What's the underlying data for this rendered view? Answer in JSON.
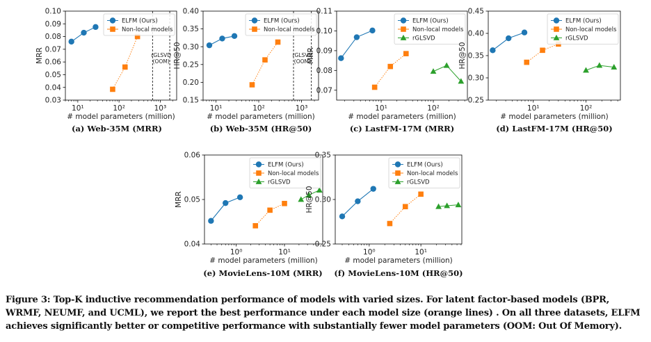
{
  "colors": {
    "ours": "#1f77b4",
    "nonlocal": "#ff7f0e",
    "rglsvd": "#2ca02c"
  },
  "legend": {
    "ours": "ELFM (Ours)",
    "nonlocal": "Non-local models",
    "rglsvd": "rGLSVD"
  },
  "figure_caption": "Figure 3: Top-K inductive recommendation performance of models with varied sizes. For latent factor-based models (BPR, WRMF, NEUMF, and UCML), we report the best performance under each model size (orange lines) . On all three datasets, ELFM achieves significantly better or competitive performance with substantially fewer model parameters (OOM: Out Of Memory).",
  "chart_data": [
    {
      "type": "line",
      "caption": "(a) Web-35M (MRR)",
      "xlabel": "# model parameters (million)",
      "ylabel": "MRR",
      "xscale": "log",
      "xlim": [
        5,
        2500
      ],
      "xticks": [
        {
          "v": 10,
          "label": "10¹"
        },
        {
          "v": 100,
          "label": "10²"
        },
        {
          "v": 1000,
          "label": "10³"
        }
      ],
      "ylim": [
        0.03,
        0.1
      ],
      "yticks": [
        0.03,
        0.04,
        0.05,
        0.06,
        0.07,
        0.08,
        0.09,
        0.1
      ],
      "ytick_labels": [
        "0.03",
        "0.04",
        "0.05",
        "0.06",
        "0.07",
        "0.08",
        "0.09",
        "0.10"
      ],
      "series": [
        {
          "key": "ours",
          "name": "ELFM (Ours)",
          "marker": "circle",
          "x": [
            7,
            14,
            27
          ],
          "y": [
            0.076,
            0.083,
            0.0875
          ]
        },
        {
          "key": "nonlocal",
          "name": "Non-local models",
          "marker": "square",
          "x": [
            70,
            140,
            280
          ],
          "y": [
            0.0385,
            0.056,
            0.08
          ]
        }
      ],
      "oom": {
        "label": "rGLSVD (OOM)",
        "lines": [
          "rGLSVD",
          "(OOM)"
        ],
        "x": [
          650,
          1700
        ]
      }
    },
    {
      "type": "line",
      "caption": "(b) Web-35M (HR@50)",
      "xlabel": "# model parameters (million)",
      "ylabel": "HR@50",
      "xscale": "log",
      "xlim": [
        5,
        2500
      ],
      "xticks": [
        {
          "v": 10,
          "label": "10¹"
        },
        {
          "v": 100,
          "label": "10²"
        },
        {
          "v": 1000,
          "label": "10³"
        }
      ],
      "ylim": [
        0.15,
        0.4
      ],
      "yticks": [
        0.15,
        0.2,
        0.25,
        0.3,
        0.35,
        0.4
      ],
      "ytick_labels": [
        "0.15",
        "0.20",
        "0.25",
        "0.30",
        "0.35",
        "0.40"
      ],
      "series": [
        {
          "key": "ours",
          "name": "ELFM (Ours)",
          "marker": "circle",
          "x": [
            7,
            14,
            27
          ],
          "y": [
            0.304,
            0.323,
            0.33
          ]
        },
        {
          "key": "nonlocal",
          "name": "Non-local models",
          "marker": "square",
          "x": [
            70,
            140,
            280
          ],
          "y": [
            0.193,
            0.263,
            0.313
          ]
        }
      ],
      "oom": {
        "label": "rGLSVD (OOM)",
        "lines": [
          "rGLSVD",
          "(OOM)"
        ],
        "x": [
          650,
          1700
        ]
      }
    },
    {
      "type": "line",
      "caption": "(c) LastFM-17M (MRR)",
      "xlabel": "# model parameters (million)",
      "ylabel": "MRR",
      "xscale": "log",
      "xlim": [
        1.4,
        450
      ],
      "xticks": [
        {
          "v": 10,
          "label": "10¹"
        },
        {
          "v": 100,
          "label": "10²"
        }
      ],
      "ylim": [
        0.065,
        0.11
      ],
      "yticks": [
        0.07,
        0.08,
        0.09,
        0.1,
        0.11
      ],
      "ytick_labels": [
        "0.07",
        "0.08",
        "0.09",
        "0.10",
        "0.11"
      ],
      "series": [
        {
          "key": "ours",
          "name": "ELFM (Ours)",
          "marker": "circle",
          "x": [
            1.7,
            3.4,
            6.8
          ],
          "y": [
            0.0862,
            0.0968,
            0.1002
          ]
        },
        {
          "key": "nonlocal",
          "name": "Non-local models",
          "marker": "square",
          "x": [
            7.5,
            15,
            30
          ],
          "y": [
            0.0715,
            0.082,
            0.0885
          ]
        },
        {
          "key": "rglsvd",
          "name": "rGLSVD",
          "marker": "triangle",
          "x": [
            100,
            180,
            340
          ],
          "y": [
            0.0795,
            0.0825,
            0.0745
          ]
        }
      ]
    },
    {
      "type": "line",
      "caption": "(d) LastFM-17M (HR@50)",
      "xlabel": "# model parameters (million)",
      "ylabel": "HR@50",
      "xscale": "log",
      "xlim": [
        1.4,
        450
      ],
      "xticks": [
        {
          "v": 10,
          "label": "10¹"
        },
        {
          "v": 100,
          "label": "10²"
        }
      ],
      "ylim": [
        0.25,
        0.45
      ],
      "yticks": [
        0.25,
        0.3,
        0.35,
        0.4,
        0.45
      ],
      "ytick_labels": [
        "0.25",
        "0.30",
        "0.35",
        "0.40",
        "0.45"
      ],
      "series": [
        {
          "key": "ours",
          "name": "ELFM (Ours)",
          "marker": "circle",
          "x": [
            1.7,
            3.4,
            6.8
          ],
          "y": [
            0.362,
            0.389,
            0.402
          ]
        },
        {
          "key": "nonlocal",
          "name": "Non-local models",
          "marker": "square",
          "x": [
            7.5,
            15,
            30
          ],
          "y": [
            0.335,
            0.362,
            0.376
          ]
        },
        {
          "key": "rglsvd",
          "name": "rGLSVD",
          "marker": "triangle",
          "x": [
            100,
            180,
            340
          ],
          "y": [
            0.317,
            0.328,
            0.324
          ]
        }
      ]
    },
    {
      "type": "line",
      "caption": "(e) MovieLens-10M (MRR)",
      "xlabel": "# model parameters (million)",
      "ylabel": "MRR",
      "xscale": "log",
      "xlim": [
        0.22,
        62
      ],
      "xticks": [
        {
          "v": 1,
          "label": "10⁰"
        },
        {
          "v": 10,
          "label": "10¹"
        }
      ],
      "ylim": [
        0.04,
        0.06
      ],
      "yticks": [
        0.04,
        0.05,
        0.06
      ],
      "ytick_labels": [
        "0.04",
        "0.05",
        "0.06"
      ],
      "series": [
        {
          "key": "ours",
          "name": "ELFM (Ours)",
          "marker": "circle",
          "x": [
            0.3,
            0.6,
            1.2
          ],
          "y": [
            0.0452,
            0.0492,
            0.0505
          ]
        },
        {
          "key": "nonlocal",
          "name": "Non-local models",
          "marker": "square",
          "x": [
            2.5,
            5,
            10
          ],
          "y": [
            0.0441,
            0.0476,
            0.0491
          ]
        },
        {
          "key": "rglsvd",
          "name": "rGLSVD",
          "marker": "triangle",
          "x": [
            22,
            32,
            53
          ],
          "y": [
            0.05,
            0.051,
            0.0521
          ]
        }
      ]
    },
    {
      "type": "line",
      "caption": "(f) MovieLens-10M (HR@50)",
      "xlabel": "# model parameters (million)",
      "ylabel": "HR@50",
      "xscale": "log",
      "xlim": [
        0.22,
        62
      ],
      "xticks": [
        {
          "v": 1,
          "label": "10⁰"
        },
        {
          "v": 10,
          "label": "10¹"
        }
      ],
      "ylim": [
        0.25,
        0.35
      ],
      "yticks": [
        0.25,
        0.3,
        0.35
      ],
      "ytick_labels": [
        "0.25",
        "0.30",
        "0.35"
      ],
      "series": [
        {
          "key": "ours",
          "name": "ELFM (Ours)",
          "marker": "circle",
          "x": [
            0.3,
            0.6,
            1.2
          ],
          "y": [
            0.281,
            0.298,
            0.312
          ]
        },
        {
          "key": "nonlocal",
          "name": "Non-local models",
          "marker": "square",
          "x": [
            2.5,
            5,
            10
          ],
          "y": [
            0.273,
            0.292,
            0.306
          ]
        },
        {
          "key": "rglsvd",
          "name": "rGLSVD",
          "marker": "triangle",
          "x": [
            22,
            32,
            53
          ],
          "y": [
            0.292,
            0.293,
            0.294
          ]
        }
      ]
    }
  ]
}
